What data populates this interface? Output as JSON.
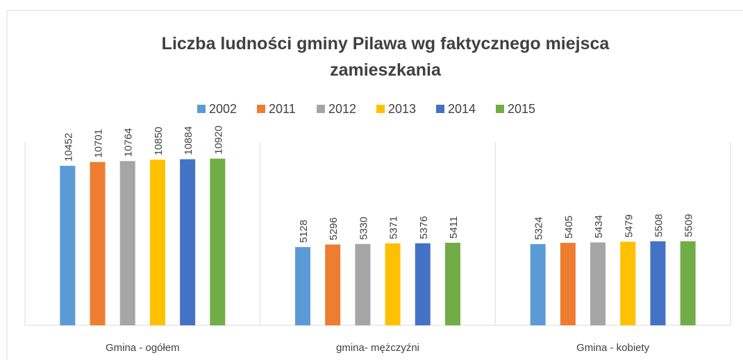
{
  "chart_data": {
    "type": "bar",
    "title": "Liczba ludności gminy Pilawa wg faktycznego miejsca zamieszkania",
    "categories": [
      "Gmina - ogółem",
      "gmina- mężczyźni",
      "Gmina - kobiety"
    ],
    "series": [
      {
        "name": "2002",
        "color": "#5b9bd5",
        "values": [
          10452,
          5128,
          5324
        ]
      },
      {
        "name": "2011",
        "color": "#ed7d31",
        "values": [
          10701,
          5296,
          5405
        ]
      },
      {
        "name": "2012",
        "color": "#a5a5a5",
        "values": [
          10764,
          5330,
          5434
        ]
      },
      {
        "name": "2013",
        "color": "#ffc000",
        "values": [
          10850,
          5371,
          5479
        ]
      },
      {
        "name": "2014",
        "color": "#4472c4",
        "values": [
          10884,
          5376,
          5508
        ]
      },
      {
        "name": "2015",
        "color": "#70ad47",
        "values": [
          10920,
          5411,
          5509
        ]
      }
    ],
    "ylim": [
      0,
      12000
    ],
    "legend": "top"
  }
}
